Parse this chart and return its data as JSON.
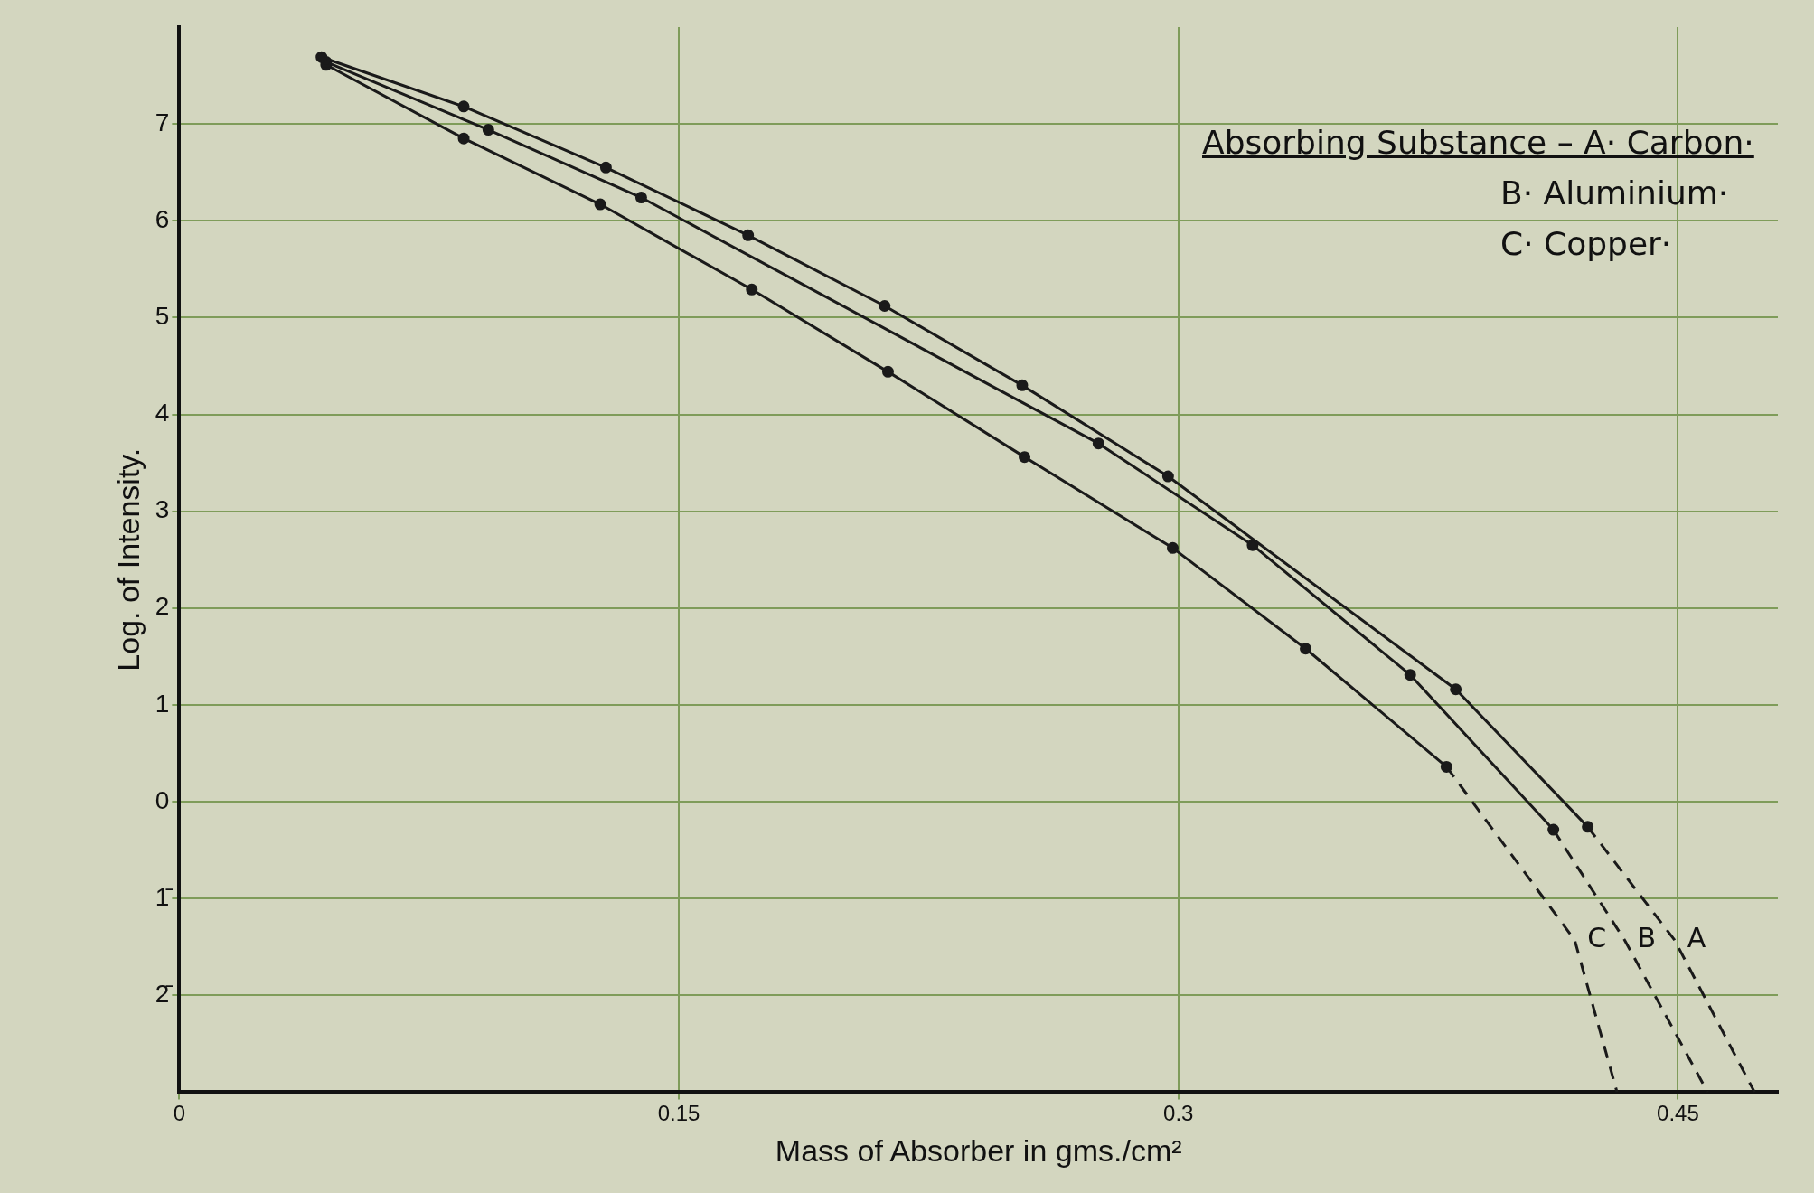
{
  "chart_data": {
    "type": "line",
    "xlabel": "Mass of Absorber in gms./cm²",
    "ylabel": "Log. of Intensity.",
    "xlim": [
      0,
      0.48
    ],
    "ylim": [
      -3,
      8
    ],
    "xticks": [
      0,
      0.15,
      0.3,
      0.45
    ],
    "yticks": [
      {
        "value": -2,
        "label": "2̄"
      },
      {
        "value": -1,
        "label": "1̄"
      },
      0,
      1,
      2,
      3,
      4,
      5,
      6,
      7
    ],
    "grid": true,
    "legend": false,
    "series": [
      {
        "type": "line",
        "color": "#1a1a1a",
        "marker": "circle",
        "line_style": "solid",
        "x": [
          0.0427,
          0.0854,
          0.1281,
          0.1708,
          0.2118,
          0.2531,
          0.2969,
          0.3833,
          0.4229
        ],
        "values": [
          7.69,
          7.18,
          6.55,
          5.85,
          5.12,
          4.3,
          3.36,
          1.16,
          -0.26
        ]
      },
      {
        "type": "line",
        "color": "#1a1a1a",
        "marker": "circle",
        "line_style": "solid",
        "x": [
          0.0441,
          0.0928,
          0.1387,
          0.276,
          0.3223,
          0.3696,
          0.4126
        ],
        "values": [
          7.64,
          6.94,
          6.24,
          3.7,
          2.65,
          1.31,
          -0.29
        ]
      },
      {
        "type": "line",
        "color": "#1a1a1a",
        "marker": "circle",
        "line_style": "solid",
        "x": [
          0.0441,
          0.0854,
          0.1264,
          0.1719,
          0.2128,
          0.2538,
          0.2983,
          0.3382,
          0.3805
        ],
        "values": [
          7.61,
          6.85,
          6.17,
          5.29,
          4.44,
          3.56,
          2.62,
          1.58,
          0.36
        ]
      },
      {
        "type": "line",
        "name": "A",
        "color": "#1a1a1a",
        "marker": "none",
        "line_style": "dashed",
        "x": [
          0.4229,
          0.449,
          0.473
        ],
        "values": [
          -0.26,
          -1.43,
          -3
        ]
      },
      {
        "type": "line",
        "name": "B",
        "color": "#1a1a1a",
        "marker": "none",
        "line_style": "dashed",
        "x": [
          0.4126,
          0.434,
          0.4589
        ],
        "values": [
          -0.29,
          -1.43,
          -3
        ]
      },
      {
        "type": "line",
        "name": "C",
        "color": "#1a1a1a",
        "marker": "none",
        "line_style": "dashed",
        "x": [
          0.3805,
          0.419,
          0.4317
        ],
        "values": [
          0.36,
          -1.43,
          -3
        ]
      }
    ],
    "annotations": [
      "Absorbing Substance – A· Carbon·",
      "B· Aluminium·",
      "C· Copper·"
    ]
  }
}
